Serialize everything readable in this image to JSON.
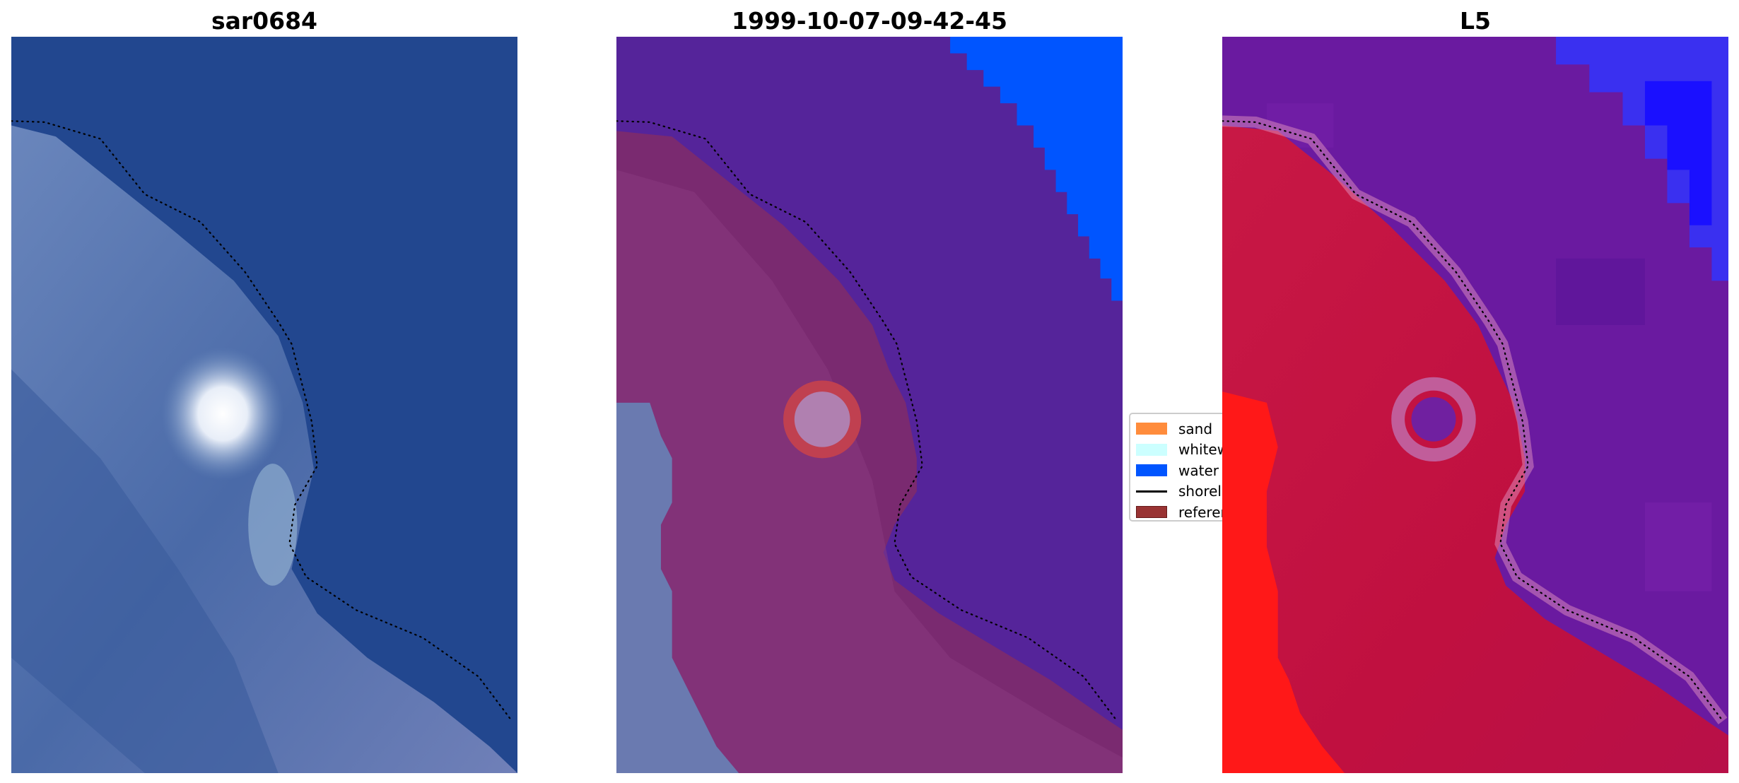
{
  "chart_data": [
    {
      "type": "image",
      "title": "sar0684",
      "overlay": "shoreline (dotted)"
    },
    {
      "type": "image",
      "title": "1999-10-07-09-42-45",
      "overlay": "shoreline (dotted)",
      "classes": [
        "sand",
        "whitewater",
        "water",
        "reference"
      ]
    },
    {
      "type": "image",
      "title": "L5",
      "overlay": "shoreline (dotted)"
    }
  ],
  "legend": {
    "placement": "center, between panels 2 and 3",
    "items": [
      {
        "label": "sand",
        "color": "#ff8c3c",
        "kind": "patch"
      },
      {
        "label": "whitewater",
        "color": "#ccffff",
        "kind": "patch"
      },
      {
        "label": "water",
        "color": "#0055ff",
        "kind": "patch"
      },
      {
        "label": "shoreline",
        "color": "#000000",
        "kind": "line"
      },
      {
        "label": "reference",
        "color": "#993333",
        "kind": "patch"
      }
    ]
  },
  "colors": {
    "rgb_water": "#22478f",
    "rgb_land": "#5a78b0",
    "class_water_purple": "#55249a",
    "class_land": "#7a2a70",
    "index_land": "#c81840",
    "index_water": "#6a1aa0"
  }
}
